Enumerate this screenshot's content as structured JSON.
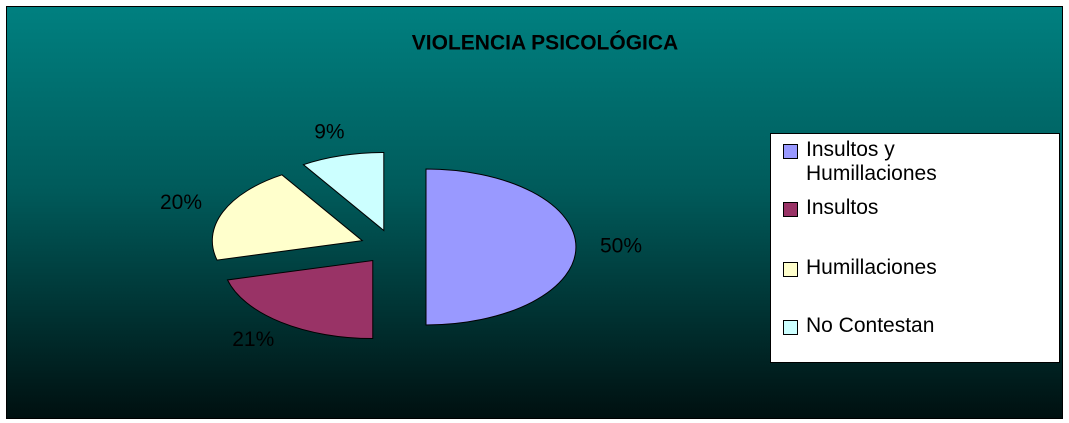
{
  "chart_data": {
    "type": "pie",
    "title": "VIOLENCIA PSICOLÓGICA",
    "categories": [
      "Insultos y Humillaciones",
      "Insultos",
      "Humillaciones",
      "No Contestan"
    ],
    "values": [
      50,
      21,
      20,
      9
    ],
    "value_labels": [
      "50%",
      "21%",
      "20%",
      "9%"
    ],
    "colors": [
      "#9999ff",
      "#993366",
      "#ffffcc",
      "#ccffff"
    ],
    "exploded": true,
    "legend": "right"
  }
}
